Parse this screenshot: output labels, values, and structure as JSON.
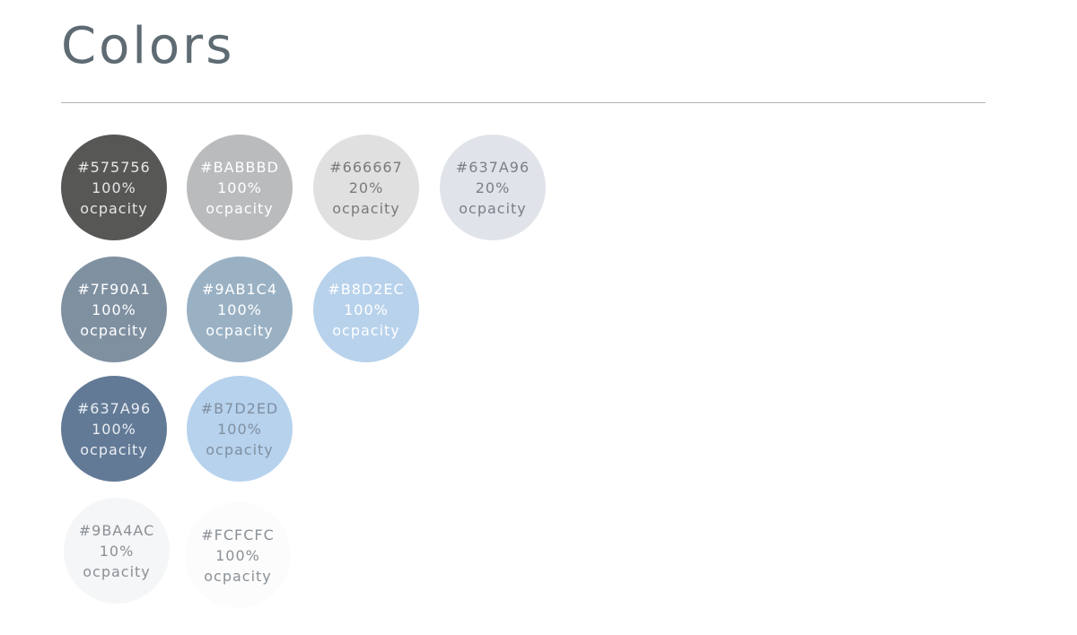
{
  "title": "Colors",
  "swatches": [
    {
      "hex": "#575756",
      "opacity": "100%",
      "label": "ocpacity",
      "fill": "#575756",
      "text_color": "#e6e6e6"
    },
    {
      "hex": "#BABBBD",
      "opacity": "100%",
      "label": "ocpacity",
      "fill": "#BABBBD",
      "text_color": "#ffffff"
    },
    {
      "hex": "#666667",
      "opacity": "20%",
      "label": "ocpacity",
      "fill": "#E0E0E1",
      "text_color": "#7a7a7b"
    },
    {
      "hex": "#637A96",
      "opacity": "20%",
      "label": "ocpacity",
      "fill": "#E0E4EA",
      "text_color": "#7a7f88"
    },
    {
      "hex": "#7F90A1",
      "opacity": "100%",
      "label": "ocpacity",
      "fill": "#7F90A1",
      "text_color": "#ffffff"
    },
    {
      "hex": "#9AB1C4",
      "opacity": "100%",
      "label": "ocpacity",
      "fill": "#9AB1C4",
      "text_color": "#ffffff"
    },
    {
      "hex": "#B8D2EC",
      "opacity": "100%",
      "label": "ocpacity",
      "fill": "#B8D2EC",
      "text_color": "#ffffff"
    },
    {
      "hex": "#637A96",
      "opacity": "100%",
      "label": "ocpacity",
      "fill": "#637A96",
      "text_color": "#e8edf3"
    },
    {
      "hex": "#B7D2ED",
      "opacity": "100%",
      "label": "ocpacity",
      "fill": "#B7D2ED",
      "text_color": "#7f8fa0"
    },
    {
      "hex": "#9BA4AC",
      "opacity": "10%",
      "label": "ocpacity",
      "fill": "#F5F6F7",
      "text_color": "#8a9096"
    },
    {
      "hex": "#FCFCFC",
      "opacity": "100%",
      "label": "ocpacity",
      "fill": "#FCFCFC",
      "text_color": "#8a9096"
    }
  ]
}
